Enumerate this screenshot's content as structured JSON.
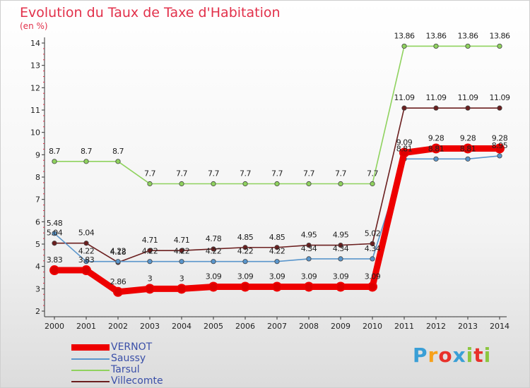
{
  "title": "Evolution du Taux de Taxe d'Habitation",
  "unit_label": "(en %)",
  "logo": {
    "letters": [
      "P",
      "r",
      "o",
      "x",
      "i",
      "t",
      "i"
    ],
    "colors": [
      "#3a9fd6",
      "#f7a11a",
      "#e8312a",
      "#3a9fd6",
      "#8cc63f",
      "#e8312a",
      "#8cc63f"
    ]
  },
  "chart_data": {
    "type": "line",
    "x": [
      "2000",
      "2001",
      "2002",
      "2003",
      "2004",
      "2005",
      "2006",
      "2007",
      "2008",
      "2009",
      "2010",
      "2011",
      "2012",
      "2013",
      "2014"
    ],
    "ylim": [
      2,
      14
    ],
    "yticks": [
      "2",
      "3",
      "4",
      "5",
      "6",
      "7",
      "8",
      "9",
      "10",
      "11",
      "12",
      "13",
      "14"
    ],
    "grid": false,
    "legend": "bottom-left",
    "series": [
      {
        "name": "Villecomte",
        "color": "#6b1f1f",
        "values": [
          5.04,
          5.04,
          4.18,
          4.71,
          4.71,
          4.78,
          4.85,
          4.85,
          4.95,
          4.95,
          5.02,
          11.09,
          11.09,
          11.09,
          11.09
        ],
        "labels": [
          "5.04",
          "5.04",
          "4.18",
          "4.71",
          "4.71",
          "4.78",
          "4.85",
          "4.85",
          "4.95",
          "4.95",
          "5.02",
          "11.09",
          "11.09",
          "11.09",
          "11.09"
        ]
      },
      {
        "name": "Tarsul",
        "color": "#8fd25e",
        "values": [
          8.7,
          8.7,
          8.7,
          7.7,
          7.7,
          7.7,
          7.7,
          7.7,
          7.7,
          7.7,
          7.7,
          13.86,
          13.86,
          13.86,
          13.86
        ],
        "labels": [
          "8.7",
          "8.7",
          "8.7",
          "7.7",
          "7.7",
          "7.7",
          "7.7",
          "7.7",
          "7.7",
          "7.7",
          "7.7",
          "13.86",
          "13.86",
          "13.86",
          "13.86"
        ]
      },
      {
        "name": "Saussy",
        "color": "#5a96cc",
        "values": [
          5.48,
          4.22,
          4.22,
          4.22,
          4.22,
          4.22,
          4.22,
          4.22,
          4.34,
          4.34,
          4.34,
          8.81,
          8.81,
          8.81,
          8.95
        ],
        "labels": [
          "5.48",
          "4.22",
          "4.22",
          "4.22",
          "4.22",
          "4.22",
          "4.22",
          "4.22",
          "4.34",
          "4.34",
          "4.34",
          "8.81",
          "8.81",
          "8.81",
          "8.95"
        ]
      },
      {
        "name": "VERNOT",
        "color": "#ee0000",
        "values": [
          3.83,
          3.83,
          2.86,
          3,
          3,
          3.09,
          3.09,
          3.09,
          3.09,
          3.09,
          3.09,
          9.09,
          9.28,
          9.28,
          9.28
        ],
        "labels": [
          "3.83",
          "3.83",
          "2.86",
          "3",
          "3",
          "3.09",
          "3.09",
          "3.09",
          "3.09",
          "3.09",
          "3.09",
          "9.09",
          "9.28",
          "9.28",
          "9.28"
        ]
      }
    ]
  }
}
